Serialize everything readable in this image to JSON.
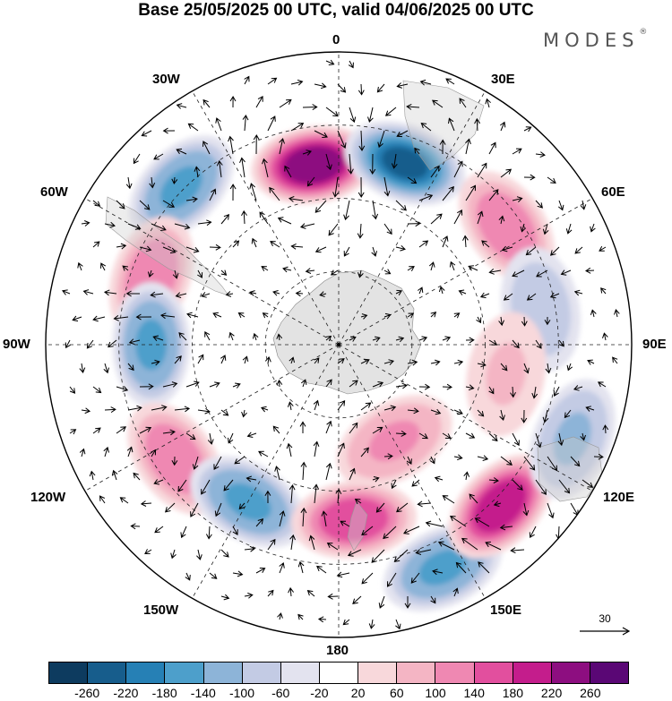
{
  "header": {
    "title": "Base 25/05/2025 00 UTC, valid 04/06/2025 00 UTC",
    "brand": "MODES",
    "brand_mark": "®"
  },
  "map": {
    "projection": "south polar stereographic",
    "longitude_labels": {
      "lon_0": "0",
      "lon_30e": "30E",
      "lon_60e": "60E",
      "lon_90e": "90E",
      "lon_120e": "120E",
      "lon_150e": "150E",
      "lon_180": "180",
      "lon_150w": "150W",
      "lon_120w": "120W",
      "lon_90w": "90W",
      "lon_60w": "60W",
      "lon_30w": "30W"
    },
    "reference_vector": "30",
    "anomaly_centers": [
      {
        "lon_deg": -8,
        "colat": 0.62,
        "value": 260
      },
      {
        "lon_deg": 20,
        "colat": 0.66,
        "value": -220
      },
      {
        "lon_deg": 55,
        "colat": 0.7,
        "value": 140
      },
      {
        "lon_deg": -45,
        "colat": 0.76,
        "value": -160
      },
      {
        "lon_deg": -70,
        "colat": 0.68,
        "value": 140
      },
      {
        "lon_deg": -90,
        "colat": 0.64,
        "value": -160
      },
      {
        "lon_deg": -125,
        "colat": 0.68,
        "value": 140
      },
      {
        "lon_deg": -150,
        "colat": 0.62,
        "value": -160
      },
      {
        "lon_deg": 175,
        "colat": 0.6,
        "value": 180
      },
      {
        "lon_deg": 155,
        "colat": 0.84,
        "value": -160
      },
      {
        "lon_deg": 135,
        "colat": 0.78,
        "value": 220
      },
      {
        "lon_deg": 112,
        "colat": 0.86,
        "value": -120
      },
      {
        "lon_deg": 80,
        "colat": 0.7,
        "value": -80
      },
      {
        "lon_deg": 100,
        "colat": 0.58,
        "value": 80
      },
      {
        "lon_deg": 150,
        "colat": 0.38,
        "value": 120
      }
    ]
  },
  "colorbar": {
    "colors": [
      "#0d3b5f",
      "#175d8c",
      "#2680b5",
      "#4d9fcb",
      "#8db4d8",
      "#c3cbe4",
      "#e3e3ef",
      "#ffffff",
      "#f8d8db",
      "#f4b5c4",
      "#ef88b2",
      "#e24f9e",
      "#c41d8c",
      "#8d0e80",
      "#5a0775"
    ],
    "ticks": [
      "-260",
      "-220",
      "-180",
      "-140",
      "-100",
      "-60",
      "-20",
      "20",
      "60",
      "100",
      "140",
      "180",
      "220",
      "260"
    ]
  }
}
